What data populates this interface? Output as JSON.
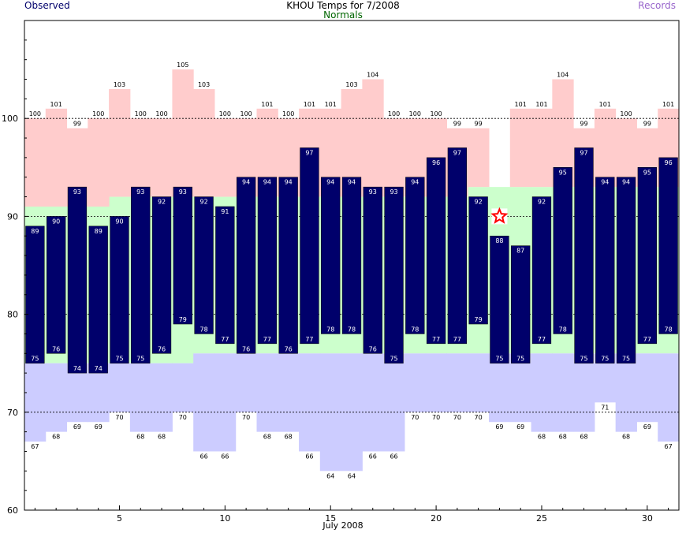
{
  "header": {
    "title": "KHOU Temps for 7/2008",
    "observed_label": "Observed",
    "normals_label": "Normals",
    "records_label": "Records"
  },
  "colors": {
    "observed": "#00006b",
    "normal_high_band": "#ccffcc",
    "normal_low_band": "#ccccff",
    "record_high_fill": "#ffcccc",
    "record_low_fill": "#ccccff",
    "normals_text": "#006600",
    "records_text": "#9966cc",
    "today_marker": "#ff0000"
  },
  "chart_data": {
    "type": "bar",
    "title": "KHOU Temps for 7/2008",
    "xlabel": "July 2008",
    "ylabel": "",
    "ylim": [
      60,
      110
    ],
    "xlim": [
      0.5,
      31.5
    ],
    "yticks": [
      60,
      70,
      80,
      90,
      100
    ],
    "xticks": [
      5,
      10,
      15,
      20,
      25,
      30
    ],
    "grid_y_dashed": [
      70,
      80,
      90,
      100
    ],
    "days": [
      1,
      2,
      3,
      4,
      5,
      6,
      7,
      8,
      9,
      10,
      11,
      12,
      13,
      14,
      15,
      16,
      17,
      18,
      19,
      20,
      21,
      22,
      23,
      24,
      25,
      26,
      27,
      28,
      29,
      30,
      31
    ],
    "series": [
      {
        "name": "Observed",
        "role": "obs_high",
        "values": [
          89,
          90,
          93,
          89,
          90,
          93,
          92,
          93,
          92,
          91,
          94,
          94,
          94,
          97,
          94,
          94,
          93,
          93,
          94,
          96,
          97,
          92,
          88,
          87,
          92,
          95,
          97,
          94,
          94,
          95,
          96
        ]
      },
      {
        "name": "Observed",
        "role": "obs_low",
        "values": [
          75,
          76,
          74,
          74,
          75,
          75,
          76,
          79,
          78,
          77,
          76,
          77,
          76,
          77,
          78,
          78,
          76,
          75,
          78,
          77,
          77,
          79,
          75,
          75,
          77,
          78,
          75,
          75,
          75,
          77,
          78
        ]
      },
      {
        "name": "Normals",
        "role": "normal_high",
        "values": [
          91,
          91,
          91,
          91,
          92,
          92,
          92,
          92,
          92,
          92,
          92,
          92,
          92,
          92,
          92,
          92,
          92,
          92,
          92,
          92,
          92,
          93,
          93,
          93,
          93,
          93,
          93,
          93,
          93,
          93,
          93
        ]
      },
      {
        "name": "Normals",
        "role": "normal_low",
        "values": [
          75,
          75,
          75,
          75,
          75,
          75,
          75,
          75,
          76,
          76,
          76,
          76,
          76,
          76,
          76,
          76,
          76,
          76,
          76,
          76,
          76,
          76,
          76,
          76,
          76,
          76,
          76,
          76,
          76,
          76,
          76
        ]
      },
      {
        "name": "Records",
        "role": "record_high",
        "values": [
          100,
          101,
          99,
          100,
          103,
          100,
          100,
          105,
          103,
          100,
          100,
          101,
          100,
          101,
          101,
          103,
          104,
          100,
          100,
          100,
          99,
          99,
          null,
          101,
          101,
          104,
          99,
          101,
          100,
          99,
          101
        ]
      },
      {
        "name": "Records",
        "role": "record_low",
        "values": [
          67,
          68,
          69,
          69,
          70,
          68,
          68,
          70,
          66,
          66,
          70,
          68,
          68,
          66,
          64,
          64,
          66,
          66,
          70,
          70,
          70,
          70,
          69,
          69,
          68,
          68,
          68,
          71,
          68,
          69,
          67
        ]
      }
    ],
    "today_marker": {
      "day": 23,
      "value": 90
    }
  }
}
